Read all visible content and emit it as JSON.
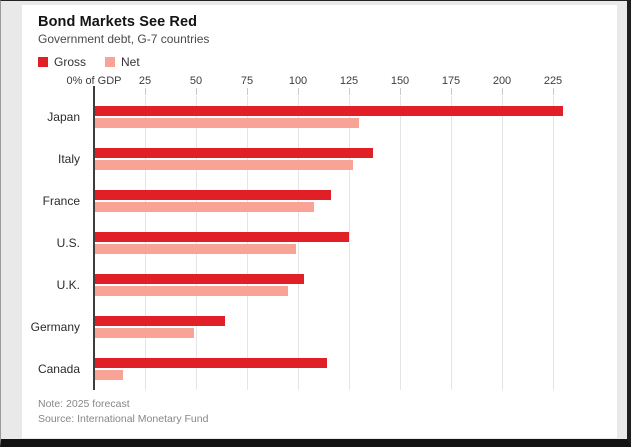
{
  "header": {
    "title": "Bond Markets See Red",
    "subtitle": "Government debt, G-7 countries"
  },
  "legend": {
    "items": [
      {
        "label": "Gross",
        "color": "#e01f26"
      },
      {
        "label": "Net",
        "color": "#f8a396"
      }
    ]
  },
  "chart_data": {
    "type": "bar",
    "orientation": "horizontal",
    "title": "Bond Markets See Red",
    "subtitle": "Government debt, G-7 countries",
    "xlabel": "% of GDP",
    "zero_tick_label": "0% of GDP",
    "xlim": [
      0,
      250
    ],
    "xticks": [
      0,
      25,
      50,
      75,
      100,
      125,
      150,
      175,
      200,
      225
    ],
    "grid": "vertical",
    "legend_position": "top-left",
    "categories": [
      "Japan",
      "Italy",
      "France",
      "U.S.",
      "U.K.",
      "Germany",
      "Canada"
    ],
    "series": [
      {
        "name": "Gross",
        "color": "#e01f26",
        "values": [
          230,
          137,
          116,
          125,
          103,
          64,
          114
        ]
      },
      {
        "name": "Net",
        "color": "#f8a396",
        "values": [
          130,
          127,
          108,
          99,
          95,
          49,
          14
        ]
      }
    ]
  },
  "footer": {
    "note": "Note: 2025 forecast",
    "source": "Source: International Monetary Fund"
  }
}
